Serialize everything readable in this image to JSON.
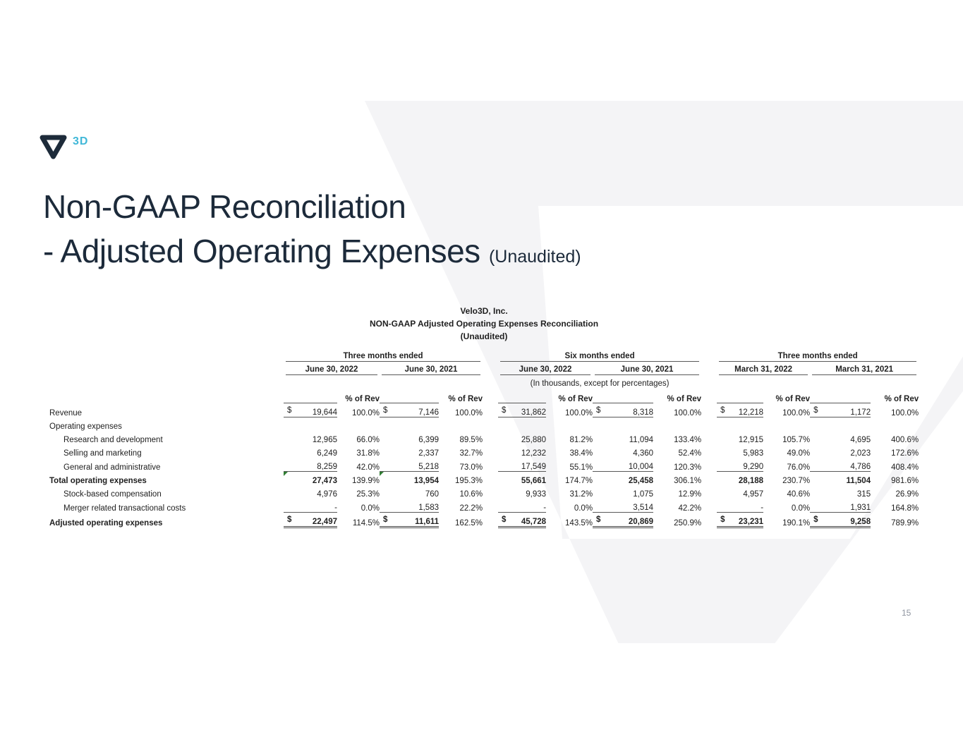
{
  "theme": {
    "navy": "#1c2a3a",
    "cyan": "#41b8d8",
    "watermark_gray": "#f4f4f6",
    "flag_green": "#2f7d32"
  },
  "logo": {
    "brand_3d": "3D"
  },
  "slide": {
    "title_line1": "Non-GAAP Reconciliation",
    "title_line2": "- Adjusted Operating Expenses",
    "title_suffix": "(Unaudited)",
    "page_number": "15"
  },
  "table": {
    "title_lines": [
      "Velo3D, Inc.",
      "NON-GAAP Adjusted Operating Expenses Reconciliation",
      "(Unaudited)"
    ],
    "note": "(In thousands, except for percentages)",
    "pct_header": "% of Rev",
    "groups": [
      {
        "label": "Three months ended",
        "periods": [
          "June 30, 2022",
          "June 30, 2021"
        ]
      },
      {
        "label": "Six months ended",
        "periods": [
          "June 30, 2022",
          "June 30, 2021"
        ]
      },
      {
        "label": "Three months ended",
        "periods": [
          "March 31, 2022",
          "March 31, 2021"
        ]
      }
    ],
    "rows": [
      {
        "label": "Revenue",
        "dollar": true,
        "underline": "single",
        "values": [
          [
            "19,644",
            "100.0%"
          ],
          [
            "7,146",
            "100.0%"
          ],
          [
            "31,862",
            "100.0%"
          ],
          [
            "8,318",
            "100.0%"
          ],
          [
            "12,218",
            "100.0%"
          ],
          [
            "1,172",
            "100.0%"
          ]
        ]
      },
      {
        "label": "Operating expenses",
        "section": true
      },
      {
        "label": "Research and development",
        "indent": true,
        "values": [
          [
            "12,965",
            "66.0%"
          ],
          [
            "6,399",
            "89.5%"
          ],
          [
            "25,880",
            "81.2%"
          ],
          [
            "11,094",
            "133.4%"
          ],
          [
            "12,915",
            "105.7%"
          ],
          [
            "4,695",
            "400.6%"
          ]
        ]
      },
      {
        "label": "Selling and marketing",
        "indent": true,
        "values": [
          [
            "6,249",
            "31.8%"
          ],
          [
            "2,337",
            "32.7%"
          ],
          [
            "12,232",
            "38.4%"
          ],
          [
            "4,360",
            "52.4%"
          ],
          [
            "5,983",
            "49.0%"
          ],
          [
            "2,023",
            "172.6%"
          ]
        ]
      },
      {
        "label": "General and administrative",
        "indent": true,
        "underline": "single",
        "values": [
          [
            "8,259",
            "42.0%"
          ],
          [
            "5,218",
            "73.0%"
          ],
          [
            "17,549",
            "55.1%"
          ],
          [
            "10,004",
            "120.3%"
          ],
          [
            "9,290",
            "76.0%"
          ],
          [
            "4,786",
            "408.4%"
          ]
        ]
      },
      {
        "label": "Total operating expenses",
        "bold": true,
        "green_flags": [
          0,
          1
        ],
        "values": [
          [
            "27,473",
            "139.9%"
          ],
          [
            "13,954",
            "195.3%"
          ],
          [
            "55,661",
            "174.7%"
          ],
          [
            "25,458",
            "306.1%"
          ],
          [
            "28,188",
            "230.7%"
          ],
          [
            "11,504",
            "981.6%"
          ]
        ]
      },
      {
        "label": "Stock-based compensation",
        "indent": true,
        "values": [
          [
            "4,976",
            "25.3%"
          ],
          [
            "760",
            "10.6%"
          ],
          [
            "9,933",
            "31.2%"
          ],
          [
            "1,075",
            "12.9%"
          ],
          [
            "4,957",
            "40.6%"
          ],
          [
            "315",
            "26.9%"
          ]
        ]
      },
      {
        "label": "Merger related transactional costs",
        "indent": true,
        "underline": "single",
        "values": [
          [
            "-",
            "0.0%"
          ],
          [
            "1,583",
            "22.2%"
          ],
          [
            "-",
            "0.0%"
          ],
          [
            "3,514",
            "42.2%"
          ],
          [
            "-",
            "0.0%"
          ],
          [
            "1,931",
            "164.8%"
          ]
        ]
      },
      {
        "label": "Adjusted operating expenses",
        "bold": true,
        "dollar": true,
        "underline": "double",
        "values": [
          [
            "22,497",
            "114.5%"
          ],
          [
            "11,611",
            "162.5%"
          ],
          [
            "45,728",
            "143.5%"
          ],
          [
            "20,869",
            "250.9%"
          ],
          [
            "23,231",
            "190.1%"
          ],
          [
            "9,258",
            "789.9%"
          ]
        ]
      }
    ]
  }
}
